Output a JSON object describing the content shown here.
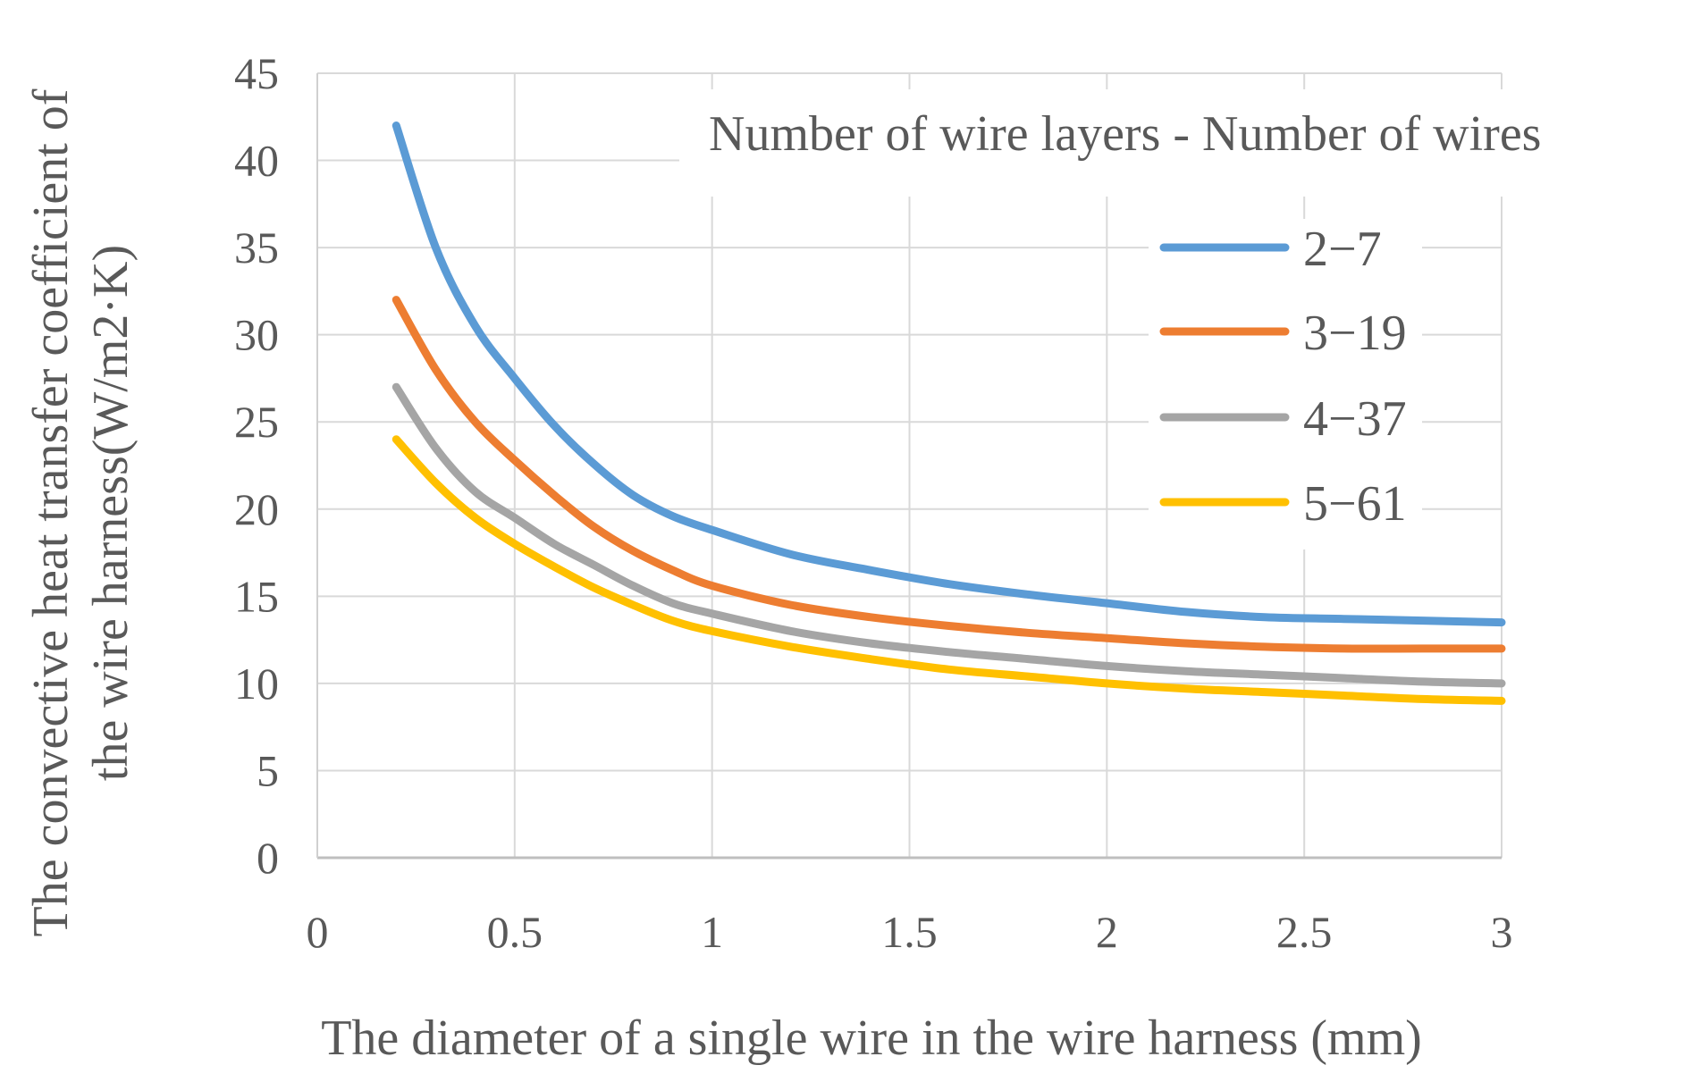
{
  "chart_data": {
    "type": "line",
    "title": "",
    "xlabel": "The diameter of a single wire in the wire harness (mm)",
    "ylabel_lines": [
      "The convective heat transfer coefficient of",
      "the wire harness(W/m2·K)"
    ],
    "xlim": [
      0,
      3
    ],
    "ylim": [
      0,
      45
    ],
    "xticks": [
      0,
      0.5,
      1,
      1.5,
      2,
      2.5,
      3
    ],
    "xtick_labels": [
      "0",
      "0.5",
      "1",
      "1.5",
      "2",
      "2.5",
      "3"
    ],
    "yticks": [
      0,
      5,
      10,
      15,
      20,
      25,
      30,
      35,
      40,
      45
    ],
    "ytick_labels": [
      "0",
      "5",
      "10",
      "15",
      "20",
      "25",
      "30",
      "35",
      "40",
      "45"
    ],
    "grid": true,
    "legend": {
      "title": "Number of wire layers - Number of wires",
      "placement": "top-right"
    },
    "x": [
      0.2,
      0.3,
      0.4,
      0.5,
      0.6,
      0.7,
      0.8,
      0.9,
      1.0,
      1.2,
      1.4,
      1.6,
      1.8,
      2.0,
      2.2,
      2.4,
      2.6,
      2.8,
      3.0
    ],
    "series": [
      {
        "name": "2−7",
        "color": "#5B9BD5",
        "values": [
          42.0,
          35.0,
          30.5,
          27.5,
          24.8,
          22.6,
          20.8,
          19.6,
          18.8,
          17.4,
          16.5,
          15.7,
          15.1,
          14.6,
          14.1,
          13.8,
          13.7,
          13.6,
          13.5
        ]
      },
      {
        "name": "3−19",
        "color": "#ED7D31",
        "values": [
          32.0,
          28.0,
          25.0,
          22.8,
          20.8,
          19.0,
          17.6,
          16.5,
          15.6,
          14.5,
          13.8,
          13.3,
          12.9,
          12.6,
          12.3,
          12.1,
          12.0,
          12.0,
          12.0
        ]
      },
      {
        "name": "4−37",
        "color": "#A5A5A5",
        "values": [
          27.0,
          23.5,
          21.0,
          19.5,
          18.0,
          16.8,
          15.6,
          14.6,
          14.0,
          13.0,
          12.3,
          11.8,
          11.4,
          11.0,
          10.7,
          10.5,
          10.3,
          10.1,
          10.0
        ]
      },
      {
        "name": "5−61",
        "color": "#FFC000",
        "values": [
          24.0,
          21.5,
          19.5,
          18.0,
          16.7,
          15.5,
          14.5,
          13.6,
          13.0,
          12.1,
          11.4,
          10.8,
          10.4,
          10.0,
          9.7,
          9.5,
          9.3,
          9.1,
          9.0
        ]
      }
    ]
  }
}
